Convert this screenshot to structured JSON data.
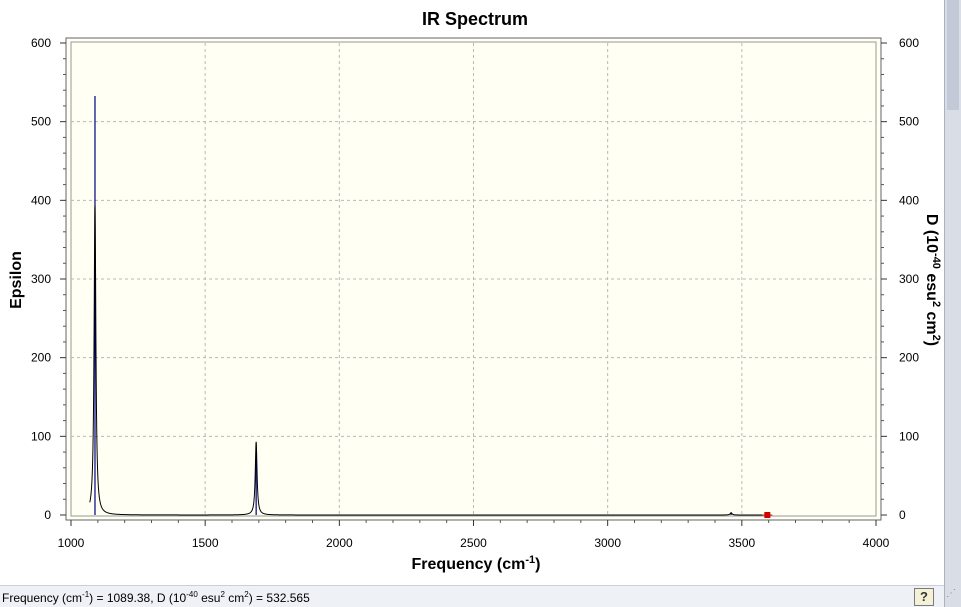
{
  "window": {
    "title": "IR Spectrum"
  },
  "chart_data": {
    "type": "line",
    "title": "IR Spectrum",
    "xlabel": "Frequency (cm",
    "xlabel_sup": "-1",
    "xlabel_end": ")",
    "ylabel": "Epsilon",
    "y2label": "D (10",
    "y2label_sup1": "-40",
    "y2label_mid": " esu",
    "y2label_sup2": "2",
    "y2label_mid2": " cm",
    "y2label_sup3": "2",
    "y2label_end": ")",
    "xlim": [
      1000,
      4000
    ],
    "ylim": [
      0,
      600
    ],
    "y2lim": [
      0,
      600
    ],
    "x_ticks": [
      1000,
      1500,
      2000,
      2500,
      3000,
      3500,
      4000
    ],
    "y_ticks": [
      0,
      100,
      200,
      300,
      400,
      500,
      600
    ],
    "y2_ticks": [
      0,
      100,
      200,
      300,
      400,
      500,
      600
    ],
    "grid": true,
    "background_color": "#fffff4",
    "line_color": "#000000",
    "stick_color": "#00007f",
    "marker_color": "#d00000",
    "peaks": [
      {
        "x": 1089.38,
        "epsilon": 394,
        "width": 8
      },
      {
        "x": 1690,
        "epsilon": 93,
        "width": 8
      },
      {
        "x": 3460,
        "epsilon": 3,
        "width": 8
      }
    ],
    "sticks": [
      {
        "x": 1089.38,
        "d": 532.565
      },
      {
        "x": 1690,
        "d": 80
      },
      {
        "x": 3460,
        "d": 3
      }
    ],
    "marker": {
      "x": 3595,
      "y": 0
    }
  },
  "status": {
    "part1": "Frequency (cm",
    "sup1": "-1",
    "part2": ") = 1089.38, D (10",
    "sup2": "-40",
    "part3": " esu",
    "sup3": "2",
    "part4": " cm",
    "sup4": "2",
    "part5": ") = 532.565",
    "help_label": "?"
  }
}
